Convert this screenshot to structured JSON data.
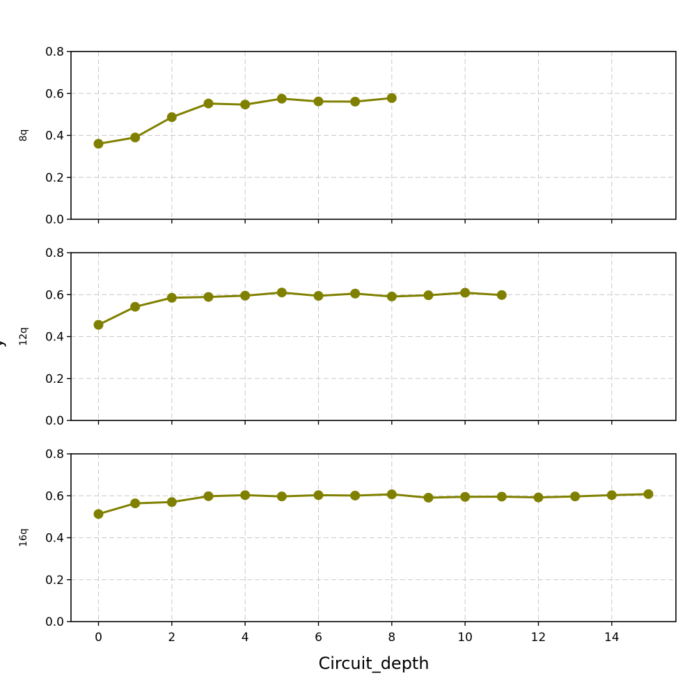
{
  "chart_data": {
    "type": "line",
    "xlabel": "Circuit_depth",
    "ylabel_fragment": "y",
    "xlim": [
      -0.75,
      15.75
    ],
    "xticks": [
      0,
      2,
      4,
      6,
      8,
      10,
      12,
      14
    ],
    "ylim": [
      0,
      0.8
    ],
    "yticks": [
      0.0,
      0.2,
      0.4,
      0.6,
      0.8
    ],
    "grid": true,
    "color": "#808000",
    "panels": [
      {
        "ylabel": "8q",
        "x": [
          0,
          1,
          2,
          3,
          4,
          5,
          6,
          7,
          8
        ],
        "y": [
          0.36,
          0.39,
          0.487,
          0.552,
          0.547,
          0.575,
          0.562,
          0.561,
          0.578
        ]
      },
      {
        "ylabel": "12q",
        "x": [
          0,
          1,
          2,
          3,
          4,
          5,
          6,
          7,
          8,
          9,
          10,
          11
        ],
        "y": [
          0.456,
          0.542,
          0.585,
          0.589,
          0.595,
          0.61,
          0.594,
          0.605,
          0.591,
          0.597,
          0.609,
          0.598
        ]
      },
      {
        "ylabel": "16q",
        "x": [
          0,
          1,
          2,
          3,
          4,
          5,
          6,
          7,
          8,
          9,
          10,
          11,
          12,
          13,
          14,
          15
        ],
        "y": [
          0.513,
          0.564,
          0.57,
          0.598,
          0.603,
          0.597,
          0.603,
          0.601,
          0.607,
          0.591,
          0.595,
          0.596,
          0.592,
          0.597,
          0.603,
          0.608
        ]
      }
    ]
  }
}
